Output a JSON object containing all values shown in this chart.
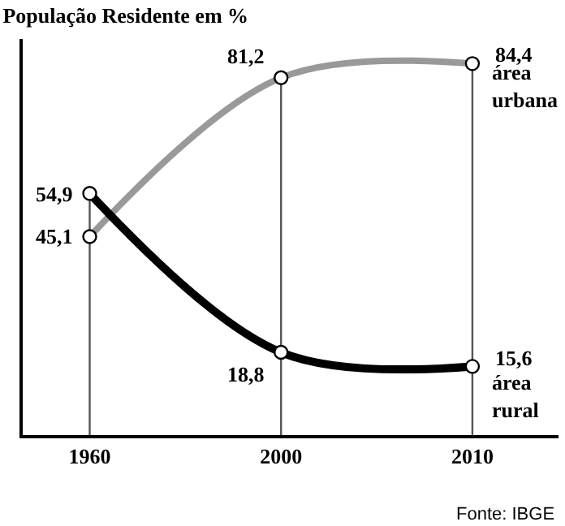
{
  "chart_data": {
    "type": "line",
    "title": "População Residente em %",
    "categories": [
      "1960",
      "2000",
      "2010"
    ],
    "series": [
      {
        "name": "área urbana",
        "color": "#999999",
        "values": [
          45.1,
          81.2,
          84.4
        ],
        "value_labels": [
          "45,1",
          "81,2",
          "84,4"
        ]
      },
      {
        "name": "área rural",
        "color": "#000000",
        "values": [
          54.9,
          18.8,
          15.6
        ],
        "value_labels": [
          "54,9",
          "18,8",
          "15,6"
        ]
      }
    ],
    "ylim": [
      0,
      90
    ],
    "tick_labels": "x",
    "grid": false,
    "legend": false,
    "marker": "circle",
    "line_style": "solid",
    "ref_lines": [
      {
        "axis": "x",
        "value": "1960",
        "color": "#555555"
      },
      {
        "axis": "x",
        "value": "2000",
        "color": "#555555"
      },
      {
        "axis": "x",
        "value": "2010",
        "color": "#555555"
      }
    ],
    "annotations": [
      "Fonte: IBGE"
    ]
  }
}
